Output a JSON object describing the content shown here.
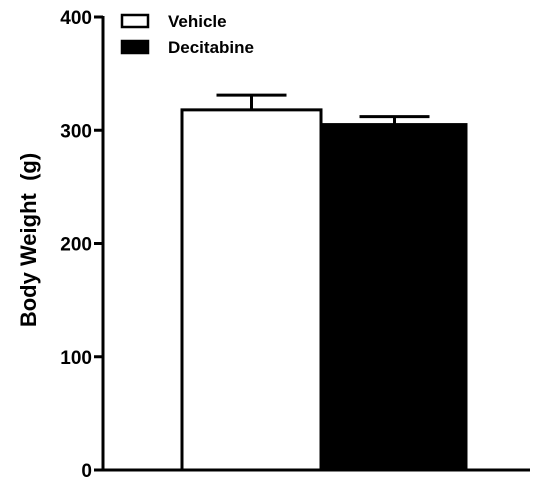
{
  "chart_data": {
    "type": "bar",
    "title": "",
    "xlabel": "",
    "ylabel": "Body Weight  (g)",
    "ylim": [
      0,
      400
    ],
    "yticks": [
      "0",
      "100",
      "200",
      "300",
      "400"
    ],
    "grid": false,
    "legend_position": "top-left",
    "series": [
      {
        "name": "Vehicle",
        "value": 318,
        "error": 13,
        "fill": "#ffffff",
        "stroke": "#000000"
      },
      {
        "name": "Decitabine",
        "value": 305,
        "error": 7,
        "fill": "#000000",
        "stroke": "#000000"
      }
    ]
  }
}
